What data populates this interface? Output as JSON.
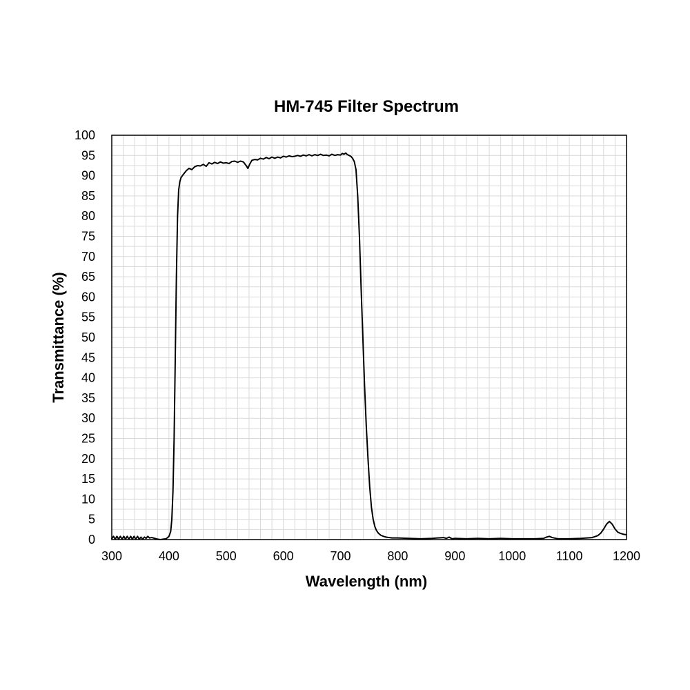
{
  "chart_data": {
    "type": "line",
    "title": "HM-745 Filter Spectrum",
    "xlabel": "Wavelength (nm)",
    "ylabel": "Transmittance (%)",
    "xlim": [
      300,
      1200
    ],
    "ylim": [
      0,
      100
    ],
    "x_ticks": [
      300,
      400,
      500,
      600,
      700,
      800,
      900,
      1000,
      1100,
      1200
    ],
    "y_ticks": [
      0,
      5,
      10,
      15,
      20,
      25,
      30,
      35,
      40,
      45,
      50,
      55,
      60,
      65,
      70,
      75,
      80,
      85,
      90,
      95,
      100
    ],
    "x_minor_step": 20,
    "y_minor_step": 2.5,
    "grid": true,
    "legend": "none",
    "line_color": "#000000",
    "series": [
      {
        "x": [
          300,
          303,
          306,
          309,
          312,
          315,
          318,
          321,
          324,
          327,
          330,
          333,
          336,
          339,
          342,
          345,
          348,
          351,
          354,
          357,
          360,
          363,
          366,
          370,
          375,
          380,
          385,
          390,
          395,
          400,
          403,
          405,
          407,
          409,
          411,
          413,
          415,
          417,
          419,
          421,
          425,
          430,
          435,
          440,
          445,
          450,
          455,
          460,
          465,
          470,
          475,
          480,
          485,
          490,
          495,
          500,
          505,
          510,
          515,
          520,
          525,
          530,
          535,
          538,
          541,
          545,
          550,
          555,
          560,
          565,
          570,
          575,
          580,
          585,
          590,
          595,
          600,
          605,
          610,
          615,
          620,
          625,
          630,
          635,
          640,
          645,
          650,
          655,
          660,
          665,
          670,
          675,
          680,
          685,
          690,
          695,
          700,
          703,
          706,
          709,
          712,
          715,
          718,
          721,
          724,
          727,
          730,
          733,
          736,
          739,
          742,
          745,
          748,
          751,
          754,
          757,
          760,
          763,
          766,
          770,
          775,
          780,
          785,
          790,
          800,
          820,
          840,
          860,
          880,
          885,
          890,
          895,
          900,
          920,
          940,
          960,
          980,
          1000,
          1020,
          1040,
          1055,
          1060,
          1065,
          1070,
          1080,
          1100,
          1120,
          1140,
          1150,
          1155,
          1160,
          1165,
          1170,
          1175,
          1180,
          1185,
          1190,
          1195,
          1200
        ],
        "values": [
          0.2,
          0.8,
          0.1,
          0.8,
          0.1,
          0.8,
          0.1,
          0.8,
          0.1,
          0.8,
          0.1,
          0.8,
          0.1,
          0.8,
          0.1,
          0.8,
          0.1,
          0.6,
          0.1,
          0.6,
          0.3,
          0.8,
          0.4,
          0.5,
          0.3,
          0.1,
          0.0,
          0.1,
          0.2,
          0.8,
          2.0,
          5.0,
          12.0,
          25.0,
          45.0,
          65.0,
          80.0,
          86.5,
          88.5,
          89.5,
          90.3,
          91.2,
          91.8,
          91.5,
          92.2,
          92.5,
          92.4,
          92.8,
          92.3,
          93.2,
          92.9,
          93.3,
          93.0,
          93.4,
          93.1,
          93.2,
          93.0,
          93.5,
          93.6,
          93.3,
          93.6,
          93.4,
          92.5,
          91.8,
          92.8,
          93.8,
          94.0,
          93.9,
          94.3,
          94.1,
          94.5,
          94.2,
          94.6,
          94.3,
          94.6,
          94.4,
          94.8,
          94.6,
          94.9,
          94.7,
          94.8,
          95.0,
          94.8,
          95.1,
          94.9,
          95.2,
          94.9,
          95.2,
          95.0,
          95.3,
          95.0,
          95.1,
          94.9,
          95.3,
          95.0,
          95.2,
          95.1,
          95.5,
          95.3,
          95.6,
          95.2,
          95.0,
          94.8,
          94.3,
          93.5,
          91.5,
          85.0,
          75.0,
          62.0,
          50.0,
          38.0,
          28.0,
          20.0,
          13.0,
          8.0,
          5.0,
          3.2,
          2.2,
          1.6,
          1.1,
          0.8,
          0.6,
          0.5,
          0.4,
          0.4,
          0.3,
          0.2,
          0.3,
          0.5,
          0.3,
          0.6,
          0.2,
          0.3,
          0.2,
          0.3,
          0.2,
          0.3,
          0.2,
          0.2,
          0.2,
          0.3,
          0.6,
          0.8,
          0.5,
          0.2,
          0.2,
          0.3,
          0.5,
          1.0,
          1.6,
          2.6,
          3.8,
          4.5,
          3.8,
          2.6,
          1.8,
          1.5,
          1.3,
          1.2
        ]
      }
    ]
  }
}
